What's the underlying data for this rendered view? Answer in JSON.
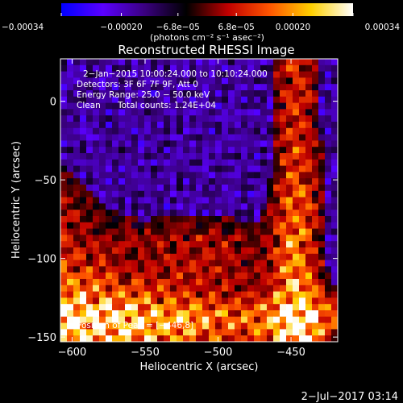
{
  "chart_data": {
    "type": "heatmap",
    "title": "Reconstructed RHESSI Image",
    "xlabel": "Heliocentric X (arcsec)",
    "ylabel": "Heliocentric Y (arcsec)",
    "xlim": [
      -608,
      -418
    ],
    "ylim": [
      -153,
      27
    ],
    "x_ticks": [
      -600,
      -550,
      -500,
      -450
    ],
    "y_ticks": [
      -150,
      -100,
      -50,
      0
    ],
    "grid": false,
    "colorbar": {
      "position": "top",
      "vmin": -0.00034,
      "vmax": 0.00034,
      "tick_values": [
        -0.00034,
        -0.0002,
        -6.8e-05,
        6.8e-05,
        0.0002,
        0.00034
      ],
      "tick_labels": [
        "−0.00034",
        "−0.00020",
        "−6.8e−05",
        "6.8e−05",
        "0.00020",
        "0.00034"
      ],
      "unit_label": "(photons cm⁻² s⁻¹ asec⁻²)",
      "colors": [
        "#0000ff",
        "#5a00ff",
        "#3a0080",
        "#000000",
        "#c00000",
        "#ff5500",
        "#ffd000",
        "#ffffff"
      ]
    },
    "annotations": [
      "2−Jan−2015 10:00:24.000 to 10:10:24.000",
      "Detectors: 3F 6F 7F 9F, Att 0",
      "Energy Range: 25.0 − 50.0 keV",
      "Clean",
      "Total counts: 1.24E+04"
    ],
    "peak_text": "Position of Peak = [−446,8]",
    "peak_position": [
      -446,
      8
    ],
    "timestamp": "2−Jul−2017 03:14",
    "grid_shape": [
      45,
      43
    ]
  }
}
